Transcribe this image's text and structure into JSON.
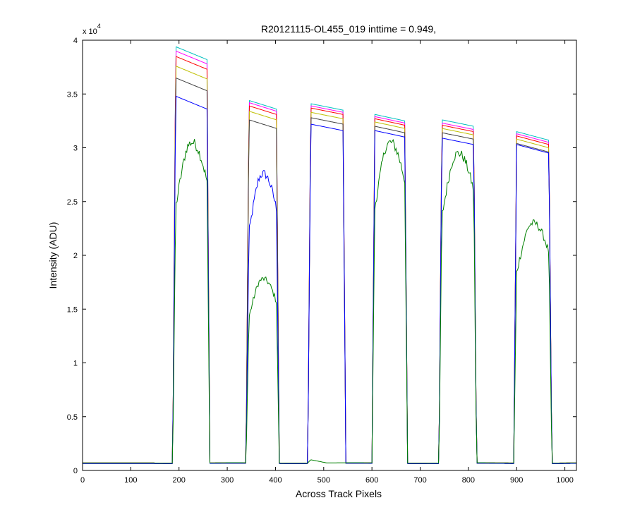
{
  "chart_data": {
    "type": "line",
    "title": "R20121115-OL455_019 inttime = 0.949,",
    "xlabel": "Across Track Pixels",
    "ylabel": "Intensity (ADU)",
    "xlim": [
      0,
      1024
    ],
    "ylim": [
      0,
      40000
    ],
    "xticks": [
      0,
      100,
      200,
      300,
      400,
      500,
      600,
      700,
      800,
      900,
      1000
    ],
    "yticks": [
      0,
      5000,
      10000,
      15000,
      20000,
      25000,
      30000,
      35000,
      40000
    ],
    "ytick_labels": [
      "0",
      "0.5",
      "1",
      "1.5",
      "2",
      "2.5",
      "3",
      "3.5",
      "4"
    ],
    "y_exponent_label": "x 10",
    "y_exponent": "4",
    "grid": false,
    "legend": "none",
    "baseline": 650,
    "bands": [
      {
        "x_start": 193,
        "x_end": 258,
        "tail_drop": 1200
      },
      {
        "x_start": 345,
        "x_end": 402,
        "tail_drop": 800
      },
      {
        "x_start": 473,
        "x_end": 540,
        "tail_drop": 600
      },
      {
        "x_start": 606,
        "x_end": 668,
        "tail_drop": 600
      },
      {
        "x_start": 745,
        "x_end": 811,
        "tail_drop": 600
      },
      {
        "x_start": 900,
        "x_end": 967,
        "tail_drop": 800
      }
    ],
    "series": [
      {
        "color": "#00bfbf",
        "peaks": [
          39400,
          34400,
          34100,
          33100,
          32600,
          31500
        ],
        "outside": 650
      },
      {
        "color": "#ff00ff",
        "peaks": [
          39000,
          34200,
          33900,
          32900,
          32300,
          31300
        ],
        "outside": 650
      },
      {
        "color": "#ff0000",
        "peaks": [
          38500,
          33900,
          33700,
          32700,
          32100,
          31100
        ],
        "outside": 700
      },
      {
        "color": "#bfbf00",
        "peaks": [
          37600,
          33400,
          33300,
          32400,
          31800,
          30800
        ],
        "outside": 650
      },
      {
        "color": "#404040",
        "peaks": [
          36500,
          32600,
          32800,
          32000,
          31400,
          30400
        ],
        "outside": 650
      },
      {
        "color": "#0000ff",
        "peaks": [
          34800,
          27600,
          32200,
          31600,
          30900,
          30300
        ],
        "outside": 650,
        "noisy": [
          false,
          true,
          false,
          false,
          false,
          false
        ]
      },
      {
        "color": "#008000",
        "peaks": [
          30500,
          17800,
          1000,
          30500,
          29500,
          23000
        ],
        "outside": 700,
        "noisy": [
          true,
          true,
          false,
          true,
          true,
          true
        ]
      }
    ]
  }
}
